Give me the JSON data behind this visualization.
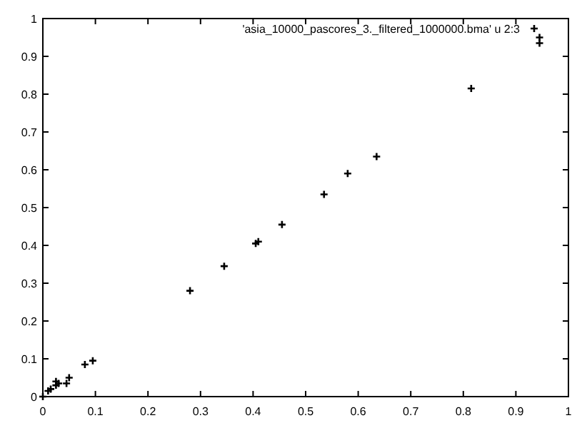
{
  "chart_data": {
    "type": "scatter",
    "xlim": [
      0,
      1
    ],
    "ylim": [
      0,
      1
    ],
    "xticks": [
      0,
      0.1,
      0.2,
      0.3,
      0.4,
      0.5,
      0.6,
      0.7,
      0.8,
      0.9,
      1
    ],
    "yticks": [
      0,
      0.1,
      0.2,
      0.3,
      0.4,
      0.5,
      0.6,
      0.7,
      0.8,
      0.9,
      1
    ],
    "grid": false,
    "legend": "top right",
    "marker": "cross",
    "series": [
      {
        "name": "'asia_10000_pascores_3._filtered_1000000.bma' u 2:3",
        "color": "#000000",
        "x": [
          0,
          0.01,
          0.015,
          0.025,
          0.025,
          0.03,
          0.045,
          0.05,
          0.08,
          0.095,
          0.28,
          0.345,
          0.405,
          0.41,
          0.455,
          0.535,
          0.58,
          0.635,
          0.815,
          0.945,
          0.945
        ],
        "values": [
          0,
          0.015,
          0.02,
          0.03,
          0.04,
          0.035,
          0.035,
          0.05,
          0.085,
          0.095,
          0.28,
          0.345,
          0.405,
          0.41,
          0.455,
          0.535,
          0.59,
          0.635,
          0.815,
          0.95,
          0.935
        ]
      }
    ]
  }
}
